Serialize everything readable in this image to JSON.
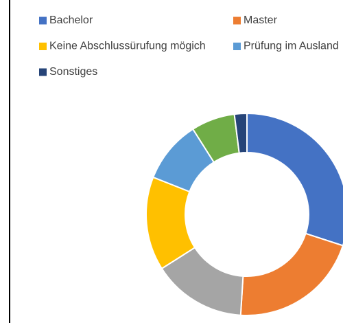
{
  "chart_data": {
    "type": "donut",
    "categories": [
      "Bachelor",
      "Master",
      null,
      "Keine Abschlussürufung mögich",
      "Prüfung im Ausland",
      null,
      "Sonstiges"
    ],
    "values": [
      30,
      21,
      15,
      15,
      10,
      7,
      2
    ],
    "colors": [
      "#4472c4",
      "#ed7d31",
      "#a5a5a5",
      "#ffc000",
      "#5b9bd5",
      "#70ad47",
      "#264478"
    ],
    "legend": "top"
  }
}
